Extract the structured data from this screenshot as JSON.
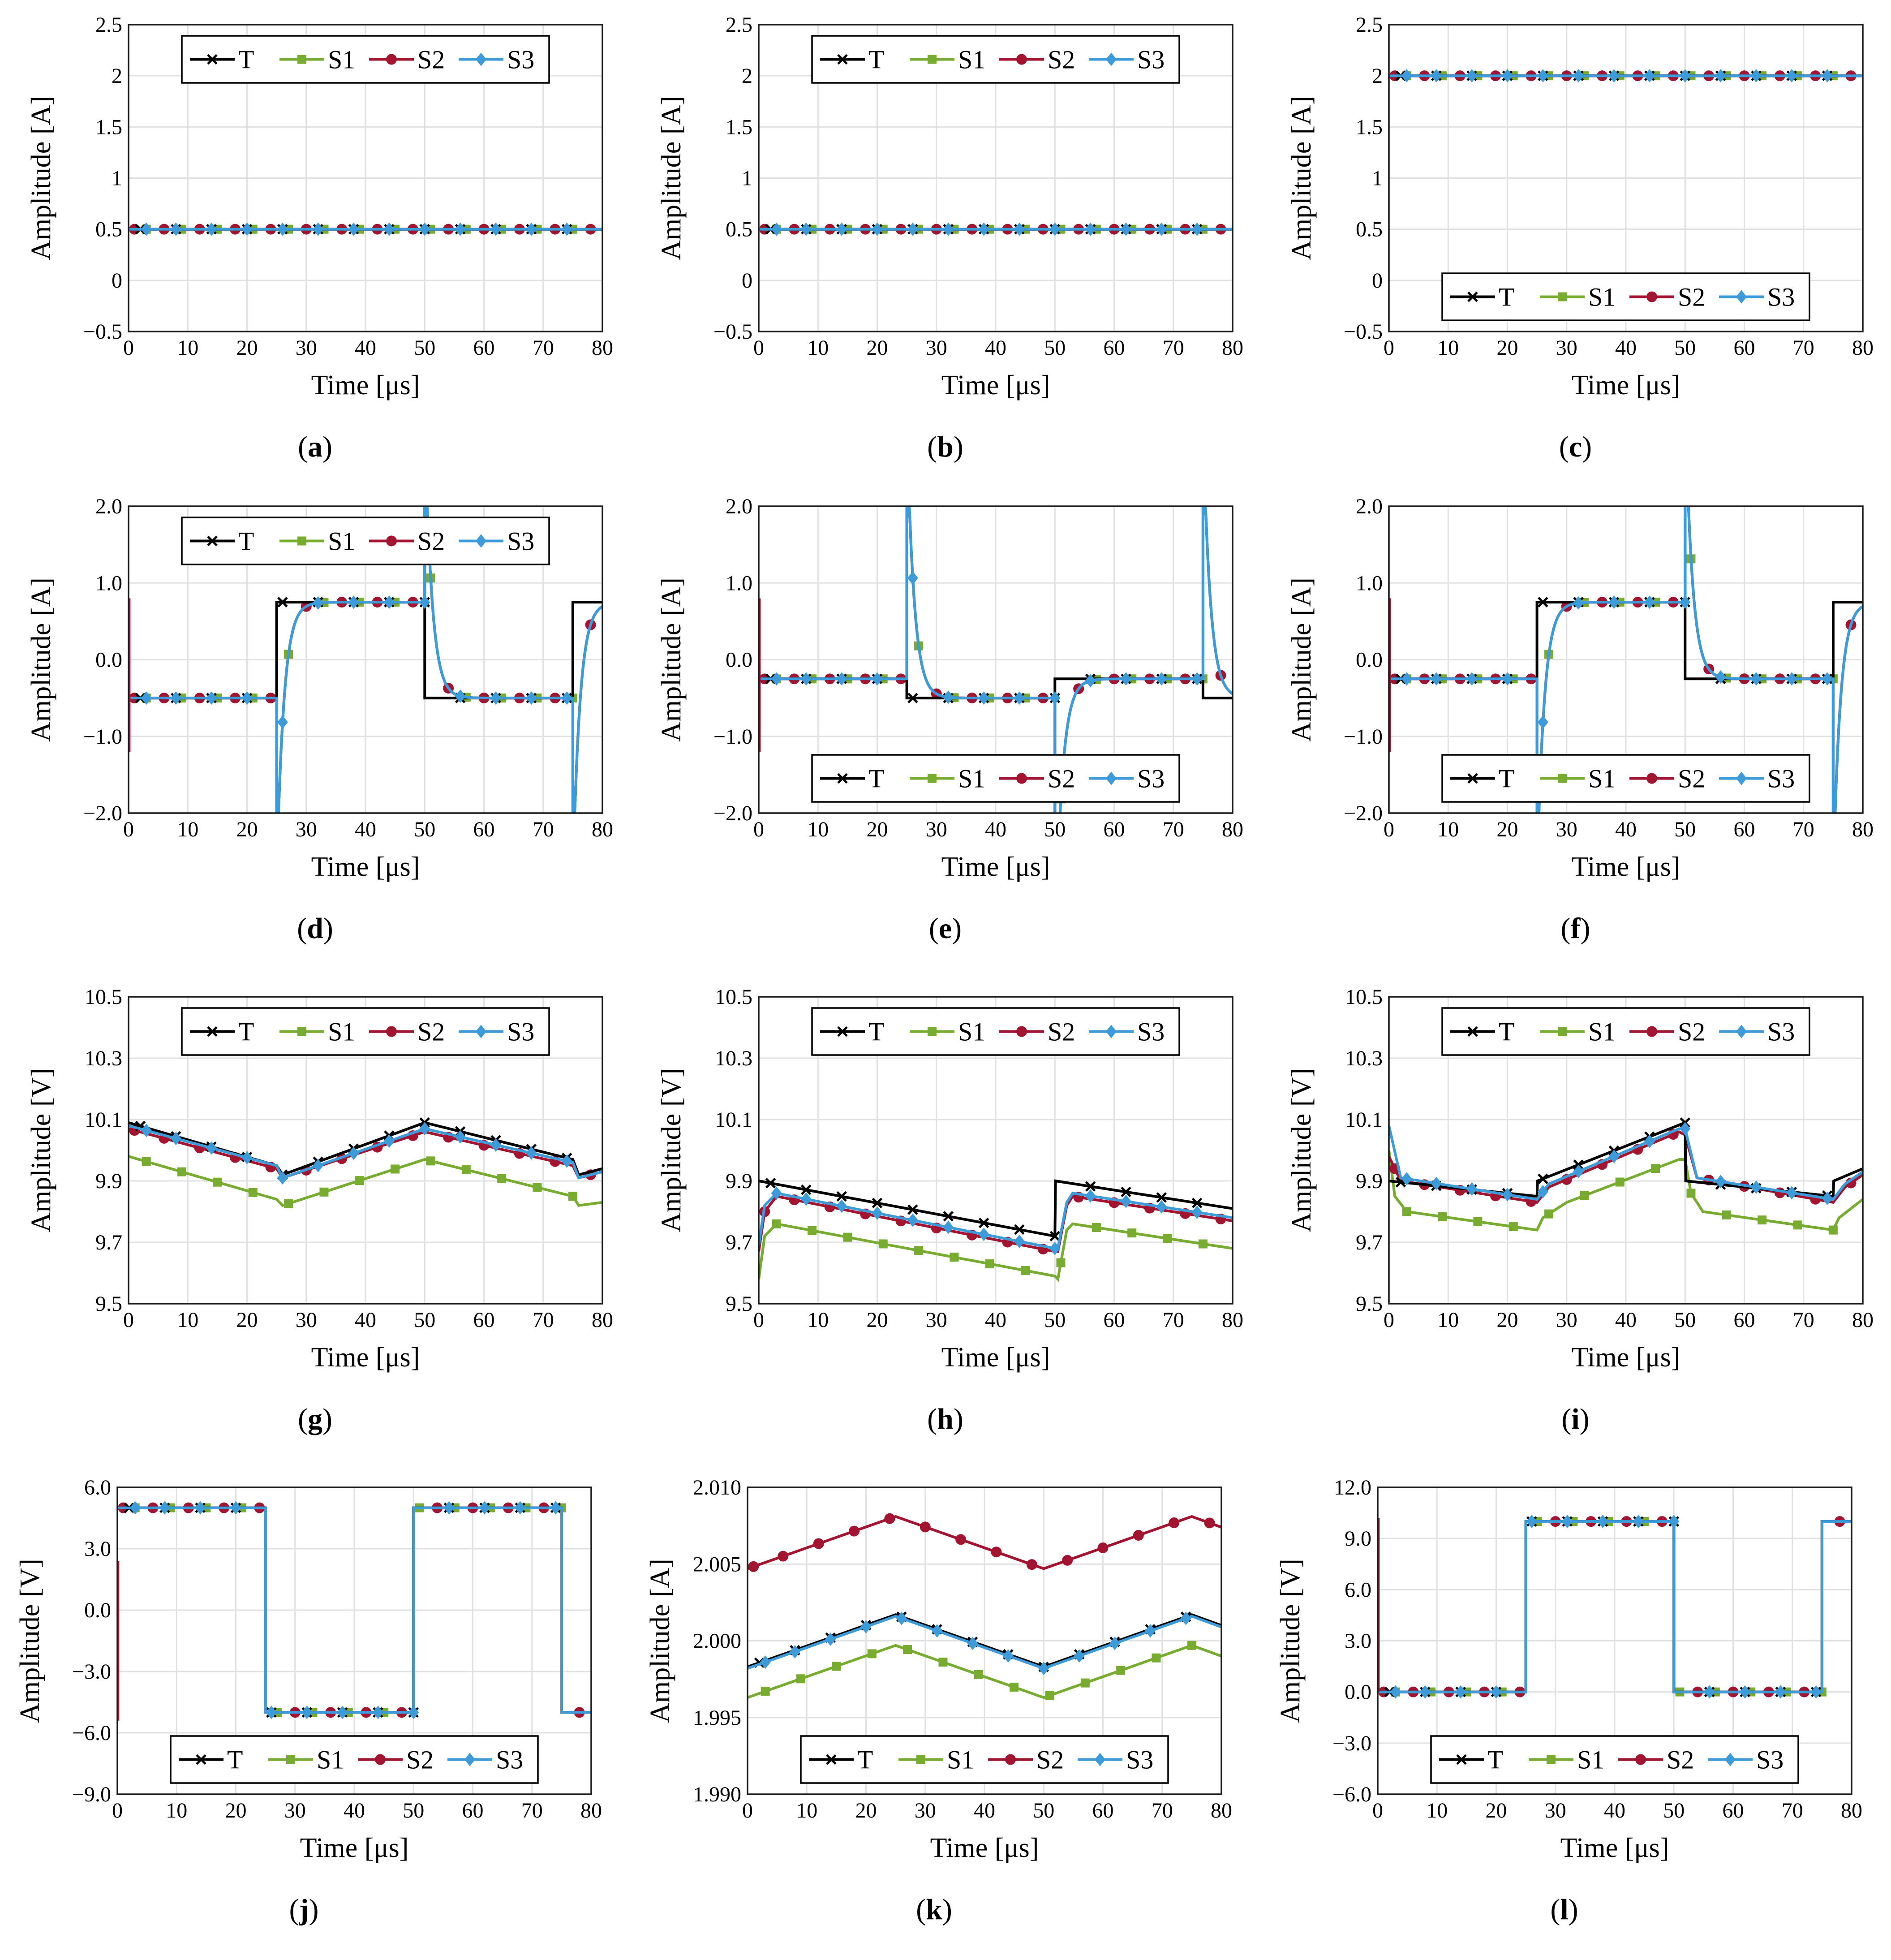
{
  "colors": {
    "T": "#000000",
    "S1": "#77ac30",
    "S2": "#a2142f",
    "S3": "#3d9bd9"
  },
  "legend": {
    "T": "T",
    "S1": "S1",
    "S2": "S2",
    "S3": "S3"
  },
  "xlabel": "Time [μs]",
  "chart_data": [
    {
      "id": "a",
      "caption": "a",
      "type": "line",
      "kind": "const",
      "level": 0.5,
      "xlabel": "Time [μs]",
      "ylabel": "Amplitude [A]",
      "xlim": [
        0,
        80
      ],
      "ylim": [
        -0.5,
        2.5
      ],
      "xticks": [
        0,
        10,
        20,
        30,
        40,
        50,
        60,
        70,
        80
      ],
      "yticks": [
        -0.5,
        0,
        0.5,
        1,
        1.5,
        2,
        2.5
      ],
      "ytick_labels": [
        "−0.5",
        "0",
        "0.5",
        "1",
        "1.5",
        "2",
        "2.5"
      ],
      "legend_position": "top-center"
    },
    {
      "id": "b",
      "caption": "b",
      "type": "line",
      "kind": "const",
      "level": 0.5,
      "xlabel": "Time [μs]",
      "ylabel": "Amplitude [A]",
      "xlim": [
        0,
        80
      ],
      "ylim": [
        -0.5,
        2.5
      ],
      "xticks": [
        0,
        10,
        20,
        30,
        40,
        50,
        60,
        70,
        80
      ],
      "yticks": [
        -0.5,
        0,
        0.5,
        1,
        1.5,
        2,
        2.5
      ],
      "ytick_labels": [
        "−0.5",
        "0",
        "0.5",
        "1",
        "1.5",
        "2",
        "2.5"
      ],
      "legend_position": "top-center"
    },
    {
      "id": "c",
      "caption": "c",
      "type": "line",
      "kind": "const",
      "level": 2.0,
      "xlabel": "Time [μs]",
      "ylabel": "Amplitude [A]",
      "xlim": [
        0,
        80
      ],
      "ylim": [
        -0.5,
        2.5
      ],
      "xticks": [
        0,
        10,
        20,
        30,
        40,
        50,
        60,
        70,
        80
      ],
      "yticks": [
        -0.5,
        0,
        0.5,
        1,
        1.5,
        2,
        2.5
      ],
      "ytick_labels": [
        "−0.5",
        "0",
        "0.5",
        "1",
        "1.5",
        "2",
        "2.5"
      ],
      "legend_position": "bottom-center"
    },
    {
      "id": "d",
      "caption": "d",
      "type": "line",
      "kind": "step",
      "segments": [
        [
          0,
          25,
          -0.5
        ],
        [
          25,
          50,
          0.75
        ],
        [
          50,
          75,
          -0.5
        ],
        [
          75,
          80,
          0.75
        ]
      ],
      "xlabel": "Time [μs]",
      "ylabel": "Amplitude [A]",
      "xlim": [
        0,
        80
      ],
      "ylim": [
        -2,
        2
      ],
      "xticks": [
        0,
        10,
        20,
        30,
        40,
        50,
        60,
        70,
        80
      ],
      "yticks": [
        -2,
        -1,
        0,
        1,
        2
      ],
      "ytick_labels": [
        "−2.0",
        "−1.0",
        "0.0",
        "1.0",
        "2.0"
      ],
      "legend_position": "top-center"
    },
    {
      "id": "e",
      "caption": "e",
      "type": "line",
      "kind": "step",
      "segments": [
        [
          0,
          25,
          -0.25
        ],
        [
          25,
          50,
          -0.5
        ],
        [
          50,
          75,
          -0.25
        ],
        [
          75,
          80,
          -0.5
        ]
      ],
      "xlabel": "Time [μs]",
      "ylabel": "Amplitude [A]",
      "xlim": [
        0,
        80
      ],
      "ylim": [
        -2,
        2
      ],
      "xticks": [
        0,
        10,
        20,
        30,
        40,
        50,
        60,
        70,
        80
      ],
      "yticks": [
        -2,
        -1,
        0,
        1,
        2
      ],
      "ytick_labels": [
        "−2.0",
        "−1.0",
        "0.0",
        "1.0",
        "2.0"
      ],
      "legend_position": "bottom-center"
    },
    {
      "id": "f",
      "caption": "f",
      "type": "line",
      "kind": "step",
      "segments": [
        [
          0,
          25,
          -0.25
        ],
        [
          25,
          50,
          0.75
        ],
        [
          50,
          75,
          -0.25
        ],
        [
          75,
          80,
          0.75
        ]
      ],
      "xlabel": "Time [μs]",
      "ylabel": "Amplitude [A]",
      "xlim": [
        0,
        80
      ],
      "ylim": [
        -2,
        2
      ],
      "xticks": [
        0,
        10,
        20,
        30,
        40,
        50,
        60,
        70,
        80
      ],
      "yticks": [
        -2,
        -1,
        0,
        1,
        2
      ],
      "ytick_labels": [
        "−2.0",
        "−1.0",
        "0.0",
        "1.0",
        "2.0"
      ],
      "legend_position": "bottom-center"
    },
    {
      "id": "g",
      "caption": "g",
      "type": "line",
      "kind": "pwl",
      "T": [
        [
          0,
          10.09
        ],
        [
          25,
          9.95
        ],
        [
          26,
          9.92
        ],
        [
          50,
          10.09
        ],
        [
          75,
          9.97
        ],
        [
          76,
          9.92
        ],
        [
          80,
          9.94
        ]
      ],
      "S1": [
        [
          0,
          9.98
        ],
        [
          25,
          9.84
        ],
        [
          26,
          9.82
        ],
        [
          50,
          9.97
        ],
        [
          75,
          9.85
        ],
        [
          76,
          9.82
        ],
        [
          80,
          9.83
        ]
      ],
      "S2": [
        [
          0,
          10.07
        ],
        [
          25,
          9.94
        ],
        [
          26,
          9.91
        ],
        [
          50,
          10.06
        ],
        [
          75,
          9.95
        ],
        [
          76,
          9.91
        ],
        [
          80,
          9.93
        ]
      ],
      "S3": [
        [
          0,
          10.08
        ],
        [
          25,
          9.95
        ],
        [
          26,
          9.91
        ],
        [
          50,
          10.07
        ],
        [
          75,
          9.96
        ],
        [
          76,
          9.91
        ],
        [
          80,
          9.93
        ]
      ],
      "xlabel": "Time [μs]",
      "ylabel": "Amplitude [V]",
      "xlim": [
        0,
        80
      ],
      "ylim": [
        9.5,
        10.5
      ],
      "xticks": [
        0,
        10,
        20,
        30,
        40,
        50,
        60,
        70,
        80
      ],
      "yticks": [
        9.5,
        9.7,
        9.9,
        10.1,
        10.3,
        10.5
      ],
      "ytick_labels": [
        "9.5",
        "9.7",
        "9.9",
        "10.1",
        "10.3",
        "10.5"
      ],
      "legend_position": "top-center"
    },
    {
      "id": "h",
      "caption": "h",
      "type": "line",
      "kind": "pwl",
      "T": [
        [
          0,
          9.9
        ],
        [
          50,
          9.72
        ],
        [
          50.1,
          9.9
        ],
        [
          80,
          9.81
        ]
      ],
      "S1": [
        [
          0,
          9.58
        ],
        [
          1,
          9.72
        ],
        [
          3,
          9.76
        ],
        [
          50,
          9.59
        ],
        [
          50.5,
          9.58
        ],
        [
          52,
          9.74
        ],
        [
          53,
          9.76
        ],
        [
          80,
          9.68
        ]
      ],
      "S2": [
        [
          0,
          9.67
        ],
        [
          1,
          9.8
        ],
        [
          3,
          9.85
        ],
        [
          50,
          9.67
        ],
        [
          50.5,
          9.67
        ],
        [
          52,
          9.82
        ],
        [
          53,
          9.85
        ],
        [
          80,
          9.77
        ]
      ],
      "S3": [
        [
          0,
          9.69
        ],
        [
          1,
          9.82
        ],
        [
          3,
          9.86
        ],
        [
          50,
          9.68
        ],
        [
          50.5,
          9.68
        ],
        [
          52,
          9.83
        ],
        [
          53,
          9.86
        ],
        [
          80,
          9.78
        ]
      ],
      "xlabel": "Time [μs]",
      "ylabel": "Amplitude [V]",
      "xlim": [
        0,
        80
      ],
      "ylim": [
        9.5,
        10.5
      ],
      "xticks": [
        0,
        10,
        20,
        30,
        40,
        50,
        60,
        70,
        80
      ],
      "yticks": [
        9.5,
        9.7,
        9.9,
        10.1,
        10.3,
        10.5
      ],
      "ytick_labels": [
        "9.5",
        "9.7",
        "9.9",
        "10.1",
        "10.3",
        "10.5"
      ],
      "legend_position": "top-center"
    },
    {
      "id": "i",
      "caption": "i",
      "type": "line",
      "kind": "pwl",
      "T": [
        [
          0,
          9.9
        ],
        [
          25,
          9.85
        ],
        [
          25.1,
          9.9
        ],
        [
          50,
          10.09
        ],
        [
          50.1,
          9.9
        ],
        [
          75,
          9.85
        ],
        [
          75.1,
          9.9
        ],
        [
          80,
          9.94
        ]
      ],
      "S1": [
        [
          0,
          10.0
        ],
        [
          1,
          9.85
        ],
        [
          3,
          9.8
        ],
        [
          25,
          9.74
        ],
        [
          26,
          9.78
        ],
        [
          30,
          9.83
        ],
        [
          49,
          9.97
        ],
        [
          50,
          9.97
        ],
        [
          51,
          9.86
        ],
        [
          53,
          9.8
        ],
        [
          75,
          9.74
        ],
        [
          76,
          9.78
        ],
        [
          80,
          9.84
        ]
      ],
      "S2": [
        [
          0,
          9.98
        ],
        [
          2,
          9.9
        ],
        [
          25,
          9.83
        ],
        [
          27,
          9.88
        ],
        [
          49,
          10.06
        ],
        [
          50,
          10.05
        ],
        [
          52,
          9.91
        ],
        [
          75,
          9.83
        ],
        [
          77,
          9.88
        ],
        [
          80,
          9.92
        ]
      ],
      "S3": [
        [
          0,
          10.08
        ],
        [
          2,
          9.91
        ],
        [
          25,
          9.84
        ],
        [
          27,
          9.89
        ],
        [
          49,
          10.07
        ],
        [
          50,
          10.07
        ],
        [
          52,
          9.91
        ],
        [
          75,
          9.84
        ],
        [
          77,
          9.89
        ],
        [
          80,
          9.93
        ]
      ],
      "xlabel": "Time [μs]",
      "ylabel": "Amplitude [V]",
      "xlim": [
        0,
        80
      ],
      "ylim": [
        9.5,
        10.5
      ],
      "xticks": [
        0,
        10,
        20,
        30,
        40,
        50,
        60,
        70,
        80
      ],
      "yticks": [
        9.5,
        9.7,
        9.9,
        10.1,
        10.3,
        10.5
      ],
      "ytick_labels": [
        "9.5",
        "9.7",
        "9.9",
        "10.1",
        "10.3",
        "10.5"
      ],
      "legend_position": "top-center"
    },
    {
      "id": "j",
      "caption": "j",
      "type": "line",
      "kind": "step",
      "segments": [
        [
          0,
          25,
          5.0
        ],
        [
          25,
          50,
          -5.0
        ],
        [
          50,
          75,
          5.0
        ],
        [
          75,
          80,
          -5.0
        ]
      ],
      "xlabel": "Time [μs]",
      "ylabel": "Amplitude [V]",
      "xlim": [
        0,
        80
      ],
      "ylim": [
        -9,
        6
      ],
      "xticks": [
        0,
        10,
        20,
        30,
        40,
        50,
        60,
        70,
        80
      ],
      "yticks": [
        -9,
        -6,
        -3,
        0,
        3,
        6
      ],
      "ytick_labels": [
        "−9.0",
        "−6.0",
        "−3.0",
        "0.0",
        "3.0",
        "6.0"
      ],
      "legend_position": "bottom-center"
    },
    {
      "id": "k",
      "caption": "k",
      "type": "line",
      "kind": "pwl",
      "T": [
        [
          0,
          1.9983
        ],
        [
          25,
          2.0017
        ],
        [
          50,
          1.9983
        ],
        [
          75,
          2.0017
        ],
        [
          80,
          2.001
        ]
      ],
      "S1": [
        [
          0,
          1.9963
        ],
        [
          25,
          1.9997
        ],
        [
          50,
          1.9963
        ],
        [
          75,
          1.9997
        ],
        [
          80,
          1.999
        ]
      ],
      "S2": [
        [
          0,
          2.0047
        ],
        [
          25,
          2.0081
        ],
        [
          50,
          2.0047
        ],
        [
          75,
          2.0081
        ],
        [
          80,
          2.0074
        ]
      ],
      "S3": [
        [
          0,
          1.9982
        ],
        [
          25,
          2.0016
        ],
        [
          50,
          1.9982
        ],
        [
          75,
          2.0016
        ],
        [
          80,
          2.0009
        ]
      ],
      "xlabel": "Time [μs]",
      "ylabel": "Amplitude [A]",
      "xlim": [
        0,
        80
      ],
      "ylim": [
        1.99,
        2.01
      ],
      "xticks": [
        0,
        10,
        20,
        30,
        40,
        50,
        60,
        70,
        80
      ],
      "yticks": [
        1.99,
        1.995,
        2.0,
        2.005,
        2.01
      ],
      "ytick_labels": [
        "1.990",
        "1.995",
        "2.000",
        "2.005",
        "2.010"
      ],
      "legend_position": "bottom-center"
    },
    {
      "id": "l",
      "caption": "l",
      "type": "line",
      "kind": "step",
      "segments": [
        [
          0,
          25,
          0.0
        ],
        [
          25,
          50,
          10.0
        ],
        [
          50,
          75,
          0.0
        ],
        [
          75,
          80,
          10.0
        ]
      ],
      "xlabel": "Time [μs]",
      "ylabel": "Amplitude [V]",
      "xlim": [
        0,
        80
      ],
      "ylim": [
        -6,
        12
      ],
      "xticks": [
        0,
        10,
        20,
        30,
        40,
        50,
        60,
        70,
        80
      ],
      "yticks": [
        -6,
        -3,
        0,
        3,
        6,
        9,
        12
      ],
      "ytick_labels": [
        "−6.0",
        "−3.0",
        "0.0",
        "3.0",
        "6.0",
        "9.0",
        "12.0"
      ],
      "legend_position": "bottom-center"
    }
  ]
}
